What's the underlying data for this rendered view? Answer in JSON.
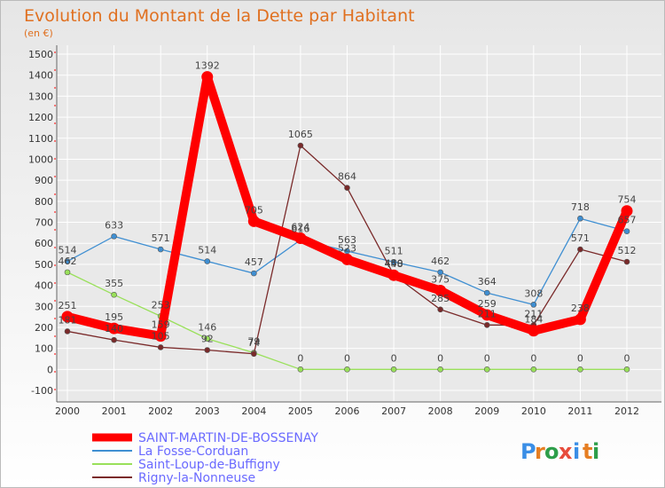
{
  "chart_data": {
    "type": "line",
    "title": "Evolution du Montant de la Dette par Habitant",
    "subtitle": "(en €)",
    "xlabel": "",
    "ylabel": "",
    "ylim": [
      -100,
      1500
    ],
    "yticks": [
      -100,
      0,
      100,
      200,
      300,
      400,
      500,
      600,
      700,
      800,
      900,
      1000,
      1100,
      1200,
      1300,
      1400,
      1500
    ],
    "x": [
      "2000",
      "2001",
      "2002",
      "2003",
      "2004",
      "2005",
      "2006",
      "2007",
      "2008",
      "2009",
      "2010",
      "2011",
      "2012"
    ],
    "series": [
      {
        "name": "SAINT-MARTIN-DE-BOSSENAY",
        "color": "#ff0000",
        "values": [
          251,
          195,
          159,
          1392,
          705,
          624,
          523,
          448,
          375,
          259,
          184,
          238,
          754
        ]
      },
      {
        "name": "La Fosse-Corduan",
        "color": "#3f8fd2",
        "values": [
          514,
          633,
          571,
          514,
          457,
          616,
          563,
          511,
          462,
          364,
          308,
          718,
          657
        ]
      },
      {
        "name": "Saint-Loup-de-Buffigny",
        "color": "#99e05a",
        "values": [
          462,
          355,
          253,
          146,
          79,
          0,
          0,
          0,
          0,
          0,
          0,
          0,
          0
        ]
      },
      {
        "name": "Rigny-la-Nonneuse",
        "color": "#7a2a2a",
        "values": [
          181,
          140,
          105,
          92,
          74,
          1065,
          864,
          450,
          285,
          211,
          211,
          571,
          512
        ]
      }
    ],
    "legend_position": "bottom-left"
  },
  "brand": {
    "letters": [
      "P",
      "r",
      "o",
      "x",
      "i",
      "t",
      "i"
    ],
    "colors": [
      "#3a8ee6",
      "#e67e22",
      "#2e9e4a",
      "#e74c3c",
      "#3a8ee6",
      "#e67e22",
      "#2e9e4a"
    ]
  }
}
